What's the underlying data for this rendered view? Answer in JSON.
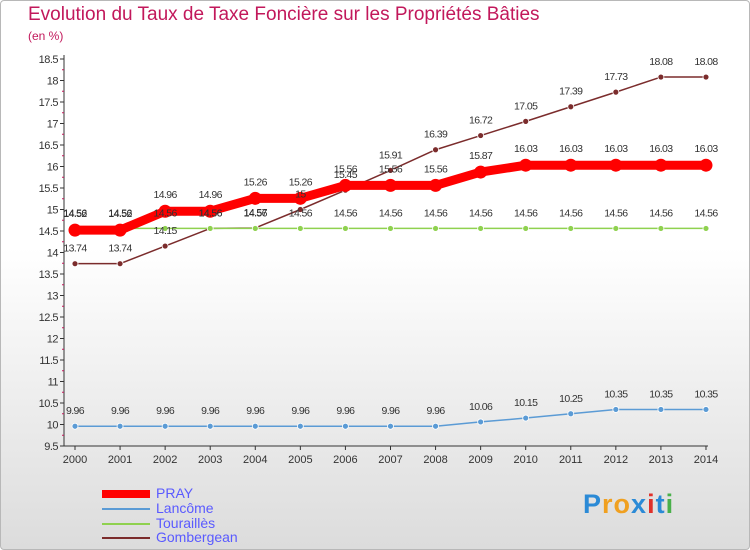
{
  "title": "Evolution du Taux de Taxe Foncière sur les Propriétés Bâties",
  "unit_label": "(en %)",
  "logo": {
    "text": "Proxiti",
    "letters": [
      "P",
      "r",
      "o",
      "x",
      "i",
      "t",
      "i"
    ],
    "colors": [
      "#2b8ad6",
      "#f0a020",
      "#f0a020",
      "#2b8ad6",
      "#e0302a",
      "#2b8ad6",
      "#49b04a"
    ]
  },
  "chart_data": {
    "type": "line",
    "x": [
      2000,
      2001,
      2002,
      2003,
      2004,
      2005,
      2006,
      2007,
      2008,
      2009,
      2010,
      2011,
      2012,
      2013,
      2014
    ],
    "ylim": [
      9.5,
      18.5
    ],
    "yticks": [
      "9.5",
      "10",
      "10.5",
      "11",
      "11.5",
      "12",
      "12.5",
      "13",
      "13.5",
      "14",
      "14.5",
      "15",
      "15.5",
      "16",
      "16.5",
      "17",
      "17.5",
      "18",
      "18.5"
    ],
    "grid": false,
    "legend_position": "bottom-left",
    "series": [
      {
        "name": "PRAY",
        "color": "#ff0000",
        "values": [
          14.52,
          14.52,
          14.96,
          14.96,
          15.26,
          15.26,
          15.56,
          15.56,
          15.56,
          15.87,
          16.03,
          16.03,
          16.03,
          16.03,
          16.03
        ],
        "labels": [
          "14.52",
          "14.52",
          "14.96",
          "14.96",
          "15.26",
          "15.26",
          "15.56",
          "15.56",
          "15.56",
          "15.87",
          "16.03",
          "16.03",
          "16.03",
          "16.03",
          "16.03"
        ]
      },
      {
        "name": "Lancôme",
        "color": "#5b9bd5",
        "values": [
          9.96,
          9.96,
          9.96,
          9.96,
          9.96,
          9.96,
          9.96,
          9.96,
          9.96,
          10.06,
          10.15,
          10.25,
          10.35,
          10.35,
          10.35
        ],
        "labels": [
          "9.96",
          "9.96",
          "9.96",
          "9.96",
          "9.96",
          "9.96",
          "9.96",
          "9.96",
          "9.96",
          "10.06",
          "10.15",
          "10.25",
          "10.35",
          "10.35",
          "10.35"
        ]
      },
      {
        "name": "Touraillès",
        "color": "#8fd14f",
        "values": [
          14.56,
          14.56,
          14.56,
          14.56,
          14.56,
          14.56,
          14.56,
          14.56,
          14.56,
          14.56,
          14.56,
          14.56,
          14.56,
          14.56,
          14.56
        ],
        "labels": [
          "14.56",
          "14.56",
          "14.56",
          "14.56",
          "14.56",
          "14.56",
          "14.56",
          "14.56",
          "14.56",
          "14.56",
          "14.56",
          "14.56",
          "14.56",
          "14.56",
          "14.56"
        ]
      },
      {
        "name": "Gombergean",
        "color": "#7b2c2c",
        "values": [
          13.74,
          13.74,
          14.15,
          14.56,
          14.57,
          15.0,
          15.45,
          15.91,
          16.39,
          16.72,
          17.05,
          17.39,
          17.73,
          18.08,
          18.08
        ],
        "labels": [
          "13.74",
          "13.74",
          "14.15",
          "14.56",
          "14.57",
          "15",
          "15.45",
          "15.91",
          "16.39",
          "16.72",
          "17.05",
          "17.39",
          "17.73",
          "18.08",
          "18.08"
        ]
      }
    ]
  }
}
